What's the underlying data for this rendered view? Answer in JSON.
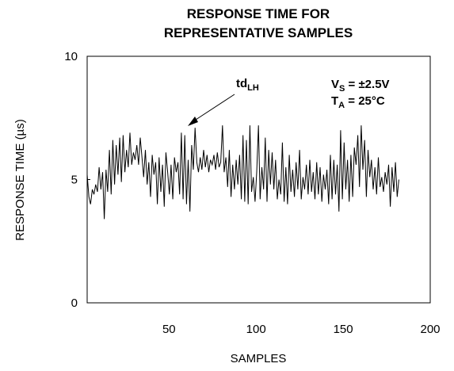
{
  "chart_data": {
    "type": "line",
    "title": [
      "RESPONSE TIME FOR",
      "REPRESENTATIVE SAMPLES"
    ],
    "xlabel": "SAMPLES",
    "ylabel": "RESPONSE TIME (µs)",
    "xlim": [
      3,
      200
    ],
    "ylim": [
      0,
      10
    ],
    "xticks": [
      50,
      100,
      150,
      200
    ],
    "yticks": [
      0,
      5,
      10
    ],
    "grid": false,
    "annotations": {
      "conditions_line1": {
        "main": "V",
        "sub": "S",
        "rest": " = ±2.5V"
      },
      "conditions_line2": {
        "main": "T",
        "sub": "A",
        "rest": " = 25°C"
      },
      "arrow_label": {
        "main": "td",
        "sub": "LH"
      }
    },
    "series": [
      {
        "values": [
          5.2,
          4.3,
          4.0,
          4.6,
          4.4,
          4.8,
          4.5,
          5.5,
          4.6,
          5.3,
          3.4,
          5.4,
          4.5,
          6.2,
          4.4,
          6.6,
          4.8,
          6.4,
          5.2,
          6.7,
          4.9,
          6.8,
          5.3,
          6.2,
          5.5,
          6.9,
          5.6,
          6.1,
          5.8,
          6.4,
          5.6,
          6.7,
          5.9,
          5.1,
          6.2,
          4.8,
          5.7,
          4.3,
          6.0,
          5.2,
          5.7,
          4.0,
          5.9,
          4.5,
          5.6,
          3.9,
          6.1,
          5.3,
          4.4,
          5.6,
          4.2,
          5.9,
          5.3,
          5.7,
          4.4,
          6.9,
          4.2,
          6.8,
          4.0,
          5.8,
          3.7,
          6.4,
          5.4,
          7.1,
          5.7,
          5.3,
          5.9,
          5.4,
          6.2,
          5.5,
          6.0,
          5.3,
          5.8,
          5.6,
          6.0,
          5.4,
          6.1,
          5.5,
          5.7,
          7.2,
          5.3,
          5.9,
          4.7,
          6.2,
          4.3,
          5.6,
          4.6,
          5.8,
          4.8,
          6.0,
          4.2,
          6.8,
          4.1,
          6.6,
          4.0,
          7.2,
          4.5,
          5.1,
          4.1,
          5.3,
          7.2,
          4.2,
          5.5,
          4.6,
          6.7,
          4.1,
          6.2,
          4.8,
          6.1,
          4.6,
          5.8,
          4.2,
          5.0,
          4.4,
          6.5,
          4.1,
          5.5,
          4.0,
          6.0,
          4.5,
          5.4,
          4.3,
          5.7,
          4.6,
          6.2,
          4.2,
          5.1,
          4.6,
          5.6,
          4.4,
          5.8,
          4.5,
          5.3,
          4.2,
          5.7,
          4.4,
          5.5,
          4.1,
          5.2,
          4.6,
          5.4,
          4.0,
          6.0,
          4.2,
          5.8,
          4.4,
          5.6,
          3.7,
          7.0,
          4.2,
          6.5,
          4.6,
          5.8,
          4.1,
          6.0,
          4.3,
          6.3,
          5.6,
          6.8,
          4.7,
          7.2,
          5.4,
          6.6,
          4.3,
          6.2,
          5.1,
          5.8,
          4.6,
          5.5,
          4.4,
          5.9,
          4.7,
          5.1,
          4.5,
          5.3,
          4.8,
          5.6,
          3.9,
          5.5,
          4.5,
          5.7,
          4.3,
          5.0
        ]
      }
    ]
  }
}
